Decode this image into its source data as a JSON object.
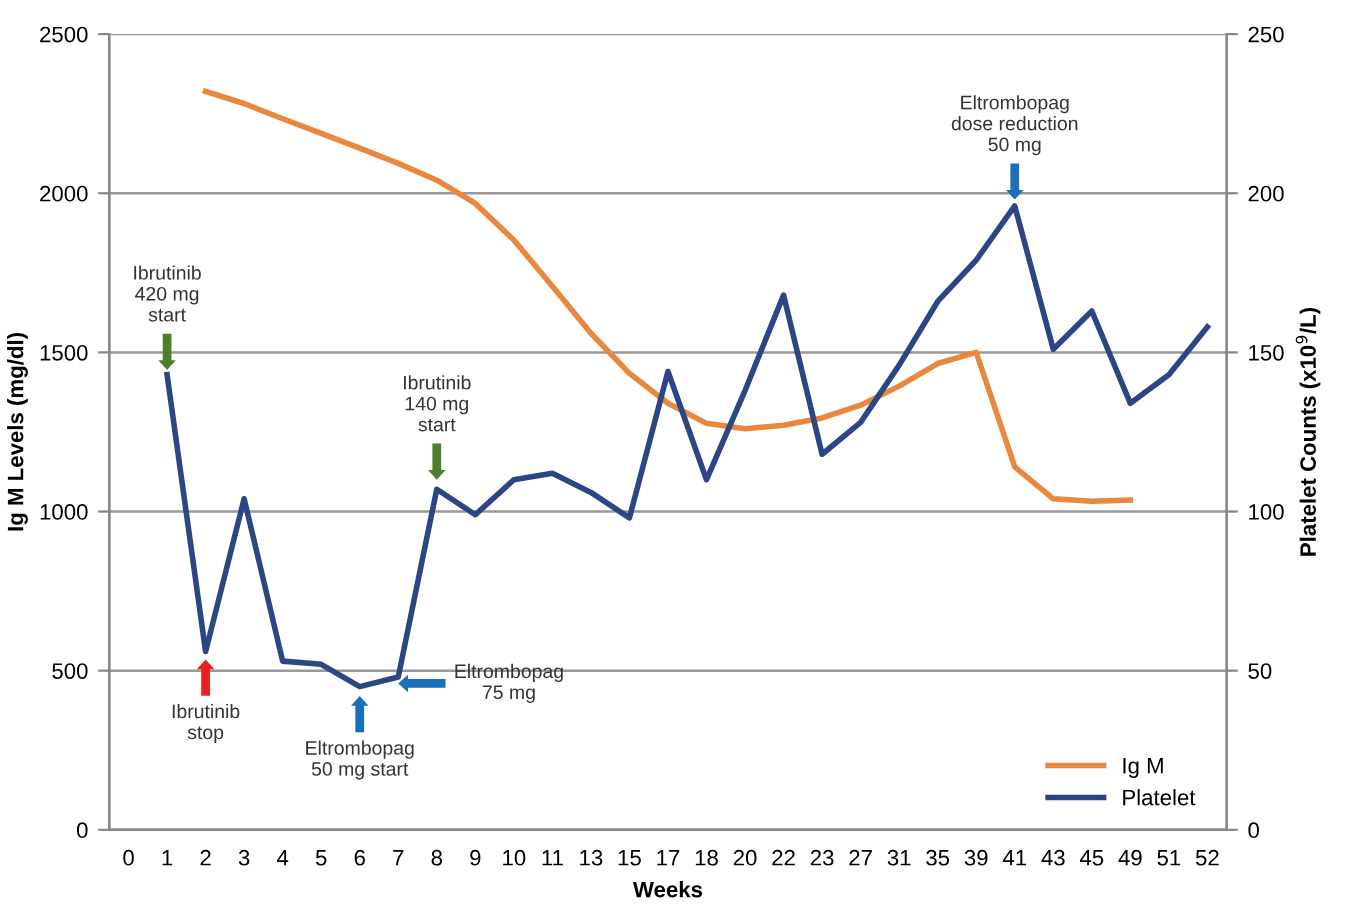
{
  "chart_data": {
    "type": "line",
    "xlabel": "Weeks",
    "ylabel": "Ig M Levels (mg/dl)",
    "y2label": "Platelet Counts (x10$^{9}$/L)",
    "categories": [
      "0",
      "1",
      "2",
      "3",
      "4",
      "5",
      "6",
      "7",
      "8",
      "9",
      "10",
      "11",
      "13",
      "15",
      "17",
      "18",
      "20",
      "22",
      "23",
      "27",
      "31",
      "35",
      "39",
      "41",
      "43",
      "45",
      "49",
      "51",
      "52"
    ],
    "series": [
      {
        "name": "Ig M",
        "color": "#e8873d",
        "values": [
          null,
          null,
          2320,
          2282,
          2234,
          2188,
          2142,
          2094,
          2041,
          1968,
          1853,
          1708,
          1560,
          1434,
          1340,
          1277,
          1260,
          1271,
          1294,
          1334,
          1394,
          1465,
          1500,
          1140,
          1040,
          1032,
          1036,
          null,
          null
        ]
      },
      {
        "name": "Platelet",
        "color": "#2b4585",
        "axis": "y2",
        "values": [
          null,
          143,
          56,
          104,
          53,
          52,
          45,
          48,
          107,
          99,
          110,
          112,
          106,
          98,
          144,
          110,
          138,
          168,
          118,
          128,
          146,
          166,
          179,
          196,
          151,
          163,
          134,
          143,
          158
        ]
      }
    ],
    "ylim": [
      0,
      2500
    ],
    "yticks": [
      0,
      500,
      1000,
      1500,
      2000,
      2500
    ],
    "y2lim": [
      0,
      250
    ],
    "y2ticks": [
      0,
      50,
      100,
      150,
      200,
      250
    ],
    "grid": "y",
    "legend": "bottom right",
    "marker": "none",
    "line_style": "solid",
    "annotations": [
      {
        "text": "Ibrutinib\n420 mg\nstart",
        "x": "1",
        "y": 1445
      },
      {
        "text": "Ibrutinib\nstop",
        "x": "2",
        "y": 535
      },
      {
        "text": "Eltrombopag\n50 mg start",
        "x": "6",
        "y": 420
      },
      {
        "text": "Eltrombopag\n75 mg",
        "x": "7",
        "y": 460
      },
      {
        "text": "Ibrutinib\n140 mg\nstart",
        "x": "8",
        "y": 1100
      },
      {
        "text": "Eltrombopag\ndose reduction\n50 mg",
        "x": "41",
        "y": 1980
      }
    ]
  }
}
